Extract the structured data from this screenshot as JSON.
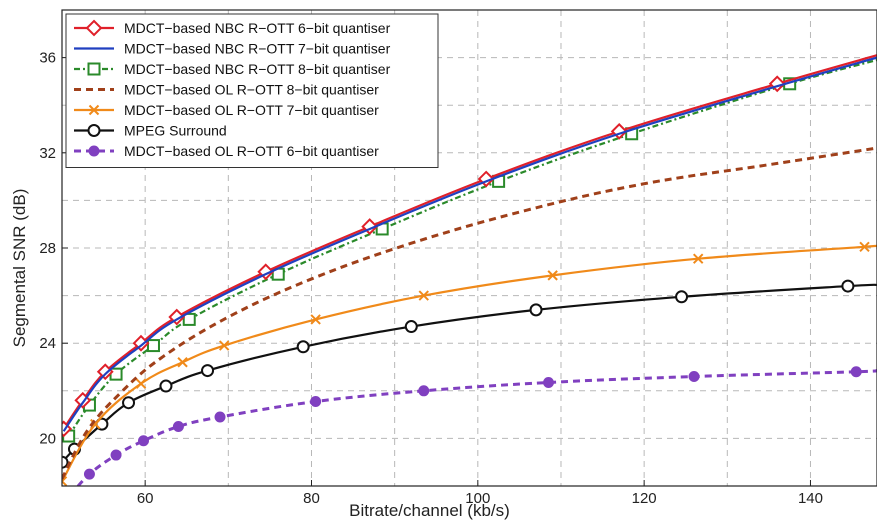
{
  "chart_data": {
    "type": "line",
    "title": "",
    "xlabel": "Bitrate/channel (kb/s)",
    "ylabel": "Segmental SNR (dB)",
    "xlim": [
      50,
      148
    ],
    "ylim": [
      18,
      38
    ],
    "xticks": [
      60,
      80,
      100,
      120,
      140
    ],
    "yticks": [
      20,
      24,
      28,
      32,
      36
    ],
    "grid": true,
    "legend_position": "top-left",
    "series": [
      {
        "name": "MDCT−based NBC R−OTT 6−bit quantiser",
        "color": "#e0202a",
        "dash": "solid",
        "marker": "diamond",
        "x": [
          50.2,
          52.5,
          55.2,
          59.5,
          63.8,
          74.5,
          87.0,
          101.0,
          117.0,
          136.0,
          148.0
        ],
        "y": [
          20.4,
          21.6,
          22.8,
          24.0,
          25.1,
          27.0,
          28.9,
          30.9,
          32.9,
          34.9,
          36.1
        ]
      },
      {
        "name": "MDCT−based NBC R−OTT 7−bit quantiser",
        "color": "#2040c0",
        "dash": "solid",
        "marker": "none",
        "x": [
          50.2,
          52.5,
          55.2,
          59.5,
          63.8,
          74.5,
          87.0,
          101.0,
          117.0,
          136.0,
          148.0
        ],
        "y": [
          20.3,
          21.5,
          22.7,
          23.9,
          25.0,
          26.9,
          28.8,
          30.8,
          32.8,
          34.8,
          36.0
        ]
      },
      {
        "name": "MDCT−based NBC R−OTT 8−bit quantiser",
        "color": "#2a8a2a",
        "dash": "dashdot",
        "marker": "square",
        "x": [
          50.8,
          53.3,
          56.5,
          61.0,
          65.3,
          76.0,
          88.5,
          102.5,
          118.5,
          137.5,
          148.0
        ],
        "y": [
          20.1,
          21.4,
          22.7,
          23.9,
          25.0,
          26.9,
          28.8,
          30.8,
          32.8,
          34.9,
          35.9
        ]
      },
      {
        "name": "MDCT−based OL R−OTT 8−bit quantiser",
        "color": "#a0401a",
        "dash": "dashed",
        "marker": "none",
        "x": [
          50.0,
          53.0,
          57.0,
          62.0,
          70.0,
          80.0,
          92.0,
          106.0,
          120.0,
          135.0,
          148.0
        ],
        "y": [
          18.3,
          20.3,
          21.9,
          23.4,
          25.1,
          26.7,
          28.2,
          29.6,
          30.7,
          31.5,
          32.2
        ]
      },
      {
        "name": "MDCT−based OL R−OTT 7−bit quantiser",
        "color": "#f08a1a",
        "dash": "solid",
        "marker": "x",
        "x": [
          50.0,
          54.0,
          59.5,
          64.5,
          69.5,
          80.5,
          93.5,
          109.0,
          126.5,
          146.5,
          148.0
        ],
        "y": [
          18.2,
          20.6,
          22.3,
          23.2,
          23.9,
          25.0,
          26.0,
          26.85,
          27.55,
          28.05,
          28.1
        ]
      },
      {
        "name": "MPEG Surround",
        "color": "#111111",
        "dash": "solid",
        "marker": "circle",
        "x": [
          50.0,
          51.5,
          54.8,
          58.0,
          62.5,
          67.5,
          79.0,
          92.0,
          107.0,
          124.5,
          144.5,
          148.0
        ],
        "y": [
          19.0,
          19.55,
          20.6,
          21.5,
          22.2,
          22.85,
          23.85,
          24.7,
          25.4,
          25.95,
          26.4,
          26.45
        ]
      },
      {
        "name": "MDCT−based OL R−OTT 6−bit quantiser",
        "color": "#8040c0",
        "dash": "dashed",
        "marker": "dot",
        "x": [
          51.0,
          53.3,
          56.5,
          59.8,
          64.0,
          69.0,
          80.5,
          93.5,
          108.5,
          126.0,
          145.5,
          148.0
        ],
        "y": [
          17.6,
          18.5,
          19.3,
          19.9,
          20.5,
          20.9,
          21.55,
          22.0,
          22.35,
          22.6,
          22.8,
          22.85
        ]
      }
    ]
  }
}
